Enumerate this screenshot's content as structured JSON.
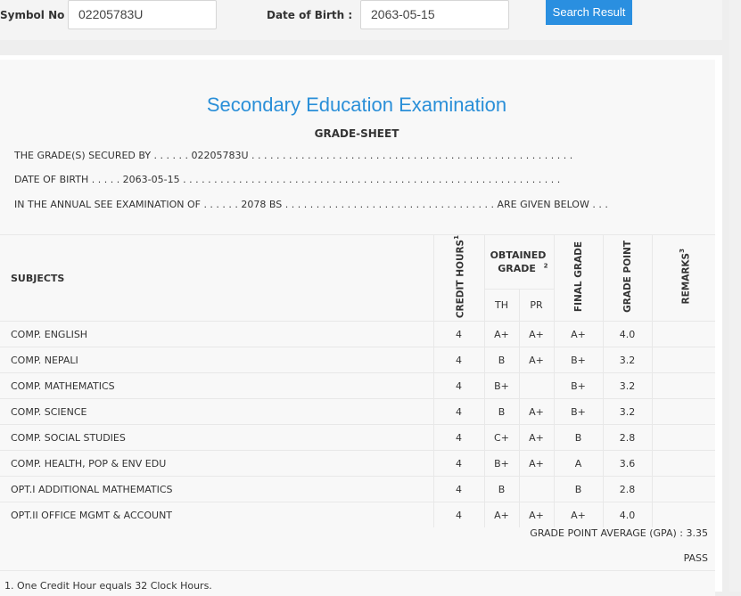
{
  "search": {
    "symbol_label": "Symbol No :",
    "symbol_value": "02205783U",
    "dob_label": "Date of Birth :",
    "dob_value": "2063-05-15",
    "button_label": "Search Result"
  },
  "result": {
    "exam_title": "Secondary Education Examination",
    "sheet_title": "GRADE-SHEET",
    "line1": "THE GRADE(S) SECURED BY . . . . . . 02205783U . . . . . . . . . . . . . . . . . . . . . . . . . . . . . . . . . . . . . . . . . . . . . . . . . . . .",
    "line2": "DATE OF BIRTH . . . . . 2063-05-15 . . . . . . . . . . . . . . . . . . . . . . . . . . . . . . . . . . . . . . . . . . . . . . . . . . . . . . . . . . . . .",
    "line3": "IN THE ANNUAL SEE EXAMINATION OF . . . . . . 2078 BS . . . . . . . . . . . . . . . . . . . . . . . . . . . . . . . . . . ARE GIVEN BELOW . . .",
    "headers": {
      "subjects": "SUBJECTS",
      "credit_hours": "CREDIT HOURS",
      "credit_sup": "1",
      "obtained_grade": "OBTAINED GRADE",
      "obtained_sup": "2",
      "th": "TH",
      "pr": "PR",
      "final_grade": "FINAL GRADE",
      "grade_point": "GRADE POINT",
      "remarks": "REMARKS",
      "remarks_sup": "3"
    },
    "rows": [
      {
        "subject": "COMP. ENGLISH",
        "credit": "4",
        "th": "A+",
        "pr": "A+",
        "final": "A+",
        "gp": "4.0",
        "remarks": ""
      },
      {
        "subject": "COMP. NEPALI",
        "credit": "4",
        "th": "B",
        "pr": "A+",
        "final": "B+",
        "gp": "3.2",
        "remarks": ""
      },
      {
        "subject": "COMP. MATHEMATICS",
        "credit": "4",
        "th": "B+",
        "pr": "",
        "final": "B+",
        "gp": "3.2",
        "remarks": ""
      },
      {
        "subject": "COMP. SCIENCE",
        "credit": "4",
        "th": "B",
        "pr": "A+",
        "final": "B+",
        "gp": "3.2",
        "remarks": ""
      },
      {
        "subject": "COMP. SOCIAL STUDIES",
        "credit": "4",
        "th": "C+",
        "pr": "A+",
        "final": "B",
        "gp": "2.8",
        "remarks": ""
      },
      {
        "subject": "COMP. HEALTH, POP & ENV EDU",
        "credit": "4",
        "th": "B+",
        "pr": "A+",
        "final": "A",
        "gp": "3.6",
        "remarks": ""
      },
      {
        "subject": "OPT.I ADDITIONAL MATHEMATICS",
        "credit": "4",
        "th": "B",
        "pr": "",
        "final": "B",
        "gp": "2.8",
        "remarks": ""
      },
      {
        "subject": "OPT.II OFFICE MGMT & ACCOUNT",
        "credit": "4",
        "th": "A+",
        "pr": "A+",
        "final": "A+",
        "gp": "4.0",
        "remarks": ""
      }
    ],
    "gpa_text": "GRADE POINT AVERAGE (GPA) : 3.35",
    "status": "PASS",
    "footnote": "1. One Credit Hour equals 32 Clock Hours."
  },
  "colors": {
    "accent": "#2a8fe0",
    "title": "#2a8fd8"
  }
}
